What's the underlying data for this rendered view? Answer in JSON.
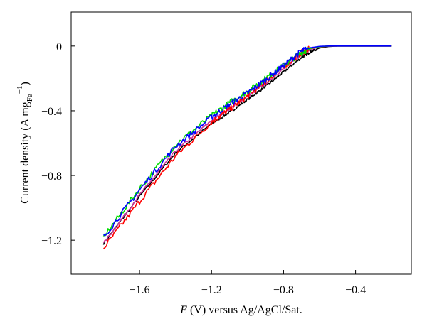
{
  "chart_data": {
    "type": "line",
    "title": "",
    "xlabel": {
      "italic": "E",
      "rest": " (V) versus Ag/AgCl/Sat."
    },
    "ylabel": {
      "text": "Current density (A mg",
      "subscript": "Fe",
      "superscript": "−1",
      "suffix": ")"
    },
    "xlim": [
      -1.98,
      -0.09
    ],
    "ylim": [
      -1.41,
      0.21
    ],
    "x_ticks": [
      -1.6,
      -1.2,
      -0.8,
      -0.4
    ],
    "x_tick_labels": [
      "−1.6",
      "−1.2",
      "−0.8",
      "−0.4"
    ],
    "y_ticks": [
      0,
      -0.4,
      -0.8,
      -1.2
    ],
    "y_tick_labels": [
      "0",
      "−0.4",
      "−0.8",
      "−1.2"
    ],
    "grid": false,
    "legend": "none",
    "series": [
      {
        "color": "#000000",
        "x": [
          -1.8,
          -1.6,
          -1.4,
          -1.2,
          -1.1,
          -1.0,
          -0.9,
          -0.8,
          -0.7,
          -0.65,
          -0.6,
          -0.55,
          -0.5,
          -0.45,
          -0.4,
          -0.3,
          -0.2
        ],
        "y": [
          -1.22,
          -0.93,
          -0.66,
          -0.48,
          -0.41,
          -0.33,
          -0.25,
          -0.16,
          -0.07,
          -0.035,
          -0.012,
          -0.003,
          0,
          0,
          0,
          0,
          0
        ],
        "noise": 0.008
      },
      {
        "color": "#cc3399",
        "x": [
          -1.8,
          -1.6,
          -1.4,
          -1.2,
          -1.1,
          -1.0,
          -0.9,
          -0.8,
          -0.7,
          -0.65,
          -0.6,
          -0.55,
          -0.5,
          -0.45,
          -0.4,
          -0.3,
          -0.2
        ],
        "y": [
          -1.22,
          -0.92,
          -0.65,
          -0.46,
          -0.39,
          -0.31,
          -0.23,
          -0.14,
          -0.05,
          -0.02,
          -0.006,
          -0.001,
          0,
          0,
          0,
          0,
          0
        ],
        "noise": 0.008
      },
      {
        "color": "#ff0000",
        "x": [
          -1.8,
          -1.6,
          -1.4,
          -1.2,
          -1.1,
          -1.0,
          -0.9,
          -0.8,
          -0.7,
          -0.65,
          -0.6,
          -0.55,
          -0.5,
          -0.45,
          -0.4,
          -0.3,
          -0.2
        ],
        "y": [
          -1.25,
          -0.96,
          -0.68,
          -0.47,
          -0.39,
          -0.31,
          -0.22,
          -0.13,
          -0.04,
          -0.015,
          -0.004,
          0,
          0,
          0,
          0,
          0,
          0
        ],
        "noise": 0.018
      },
      {
        "color": "#00dd00",
        "x": [
          -1.8,
          -1.6,
          -1.4,
          -1.2,
          -1.1,
          -1.0,
          -0.9,
          -0.8,
          -0.7,
          -0.65,
          -0.6,
          -0.55,
          -0.5,
          -0.45,
          -0.4,
          -0.3,
          -0.2
        ],
        "y": [
          -1.18,
          -0.88,
          -0.61,
          -0.43,
          -0.35,
          -0.28,
          -0.2,
          -0.12,
          -0.04,
          -0.015,
          -0.004,
          0,
          0,
          0,
          0,
          0,
          0
        ],
        "noise": 0.018
      },
      {
        "color": "#0000ff",
        "x": [
          -1.8,
          -1.6,
          -1.4,
          -1.2,
          -1.1,
          -1.0,
          -0.9,
          -0.8,
          -0.7,
          -0.65,
          -0.6,
          -0.55,
          -0.5,
          -0.45,
          -0.4,
          -0.3,
          -0.2
        ],
        "y": [
          -1.18,
          -0.89,
          -0.62,
          -0.44,
          -0.36,
          -0.29,
          -0.21,
          -0.12,
          -0.03,
          -0.01,
          -0.002,
          0,
          0,
          0,
          0,
          0,
          0
        ],
        "noise": 0.018
      }
    ]
  }
}
